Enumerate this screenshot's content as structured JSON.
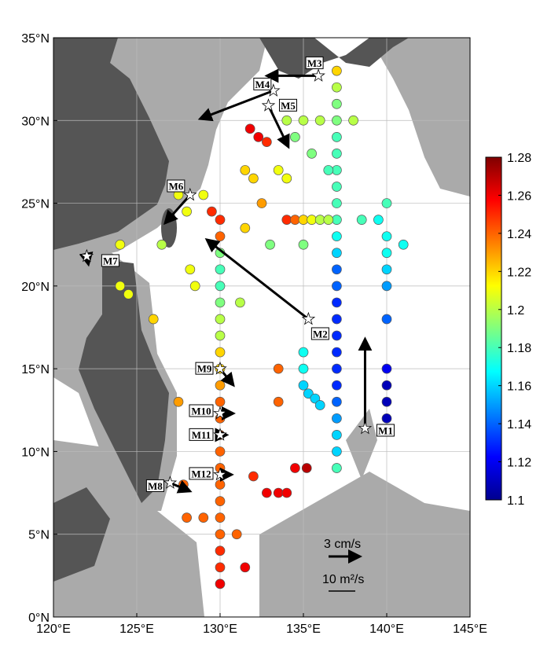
{
  "chart_data": {
    "type": "map",
    "xlim": [
      120,
      145
    ],
    "ylim": [
      0,
      35
    ],
    "xticks": [
      {
        "value": 120,
        "label": "120°E"
      },
      {
        "value": 125,
        "label": "125°E"
      },
      {
        "value": 130,
        "label": "130°E"
      },
      {
        "value": 135,
        "label": "135°E"
      },
      {
        "value": 140,
        "label": "140°E"
      },
      {
        "value": 145,
        "label": "145°E"
      }
    ],
    "yticks": [
      {
        "value": 0,
        "label": "0°N"
      },
      {
        "value": 5,
        "label": "5°N"
      },
      {
        "value": 10,
        "label": "10°N"
      },
      {
        "value": 15,
        "label": "15°N"
      },
      {
        "value": 20,
        "label": "20°N"
      },
      {
        "value": 25,
        "label": "25°N"
      },
      {
        "value": 30,
        "label": "30°N"
      },
      {
        "value": 35,
        "label": "35°N"
      }
    ],
    "grid": true,
    "clim": [
      1.1,
      1.28
    ],
    "cticks": [
      1.1,
      1.12,
      1.14,
      1.16,
      1.18,
      1.2,
      1.22,
      1.24,
      1.26,
      1.28
    ],
    "colormap": "jet",
    "scale_labels": [
      "3 cm/s",
      "10 m²/s"
    ],
    "points": [
      [
        137,
        33,
        1.22
      ],
      [
        137,
        32,
        1.2
      ],
      [
        137,
        31,
        1.19
      ],
      [
        137,
        30,
        1.19
      ],
      [
        137,
        29,
        1.18
      ],
      [
        137,
        28,
        1.18
      ],
      [
        137,
        27,
        1.18
      ],
      [
        137,
        26,
        1.18
      ],
      [
        137,
        25,
        1.18
      ],
      [
        137,
        24,
        1.18
      ],
      [
        137,
        23,
        1.17
      ],
      [
        137,
        22,
        1.16
      ],
      [
        137,
        21,
        1.14
      ],
      [
        137,
        20,
        1.14
      ],
      [
        137,
        19,
        1.13
      ],
      [
        137,
        18,
        1.13
      ],
      [
        137,
        17,
        1.13
      ],
      [
        137,
        16,
        1.13
      ],
      [
        137,
        15,
        1.13
      ],
      [
        137,
        14,
        1.13
      ],
      [
        137,
        13,
        1.14
      ],
      [
        137,
        12,
        1.15
      ],
      [
        137,
        11,
        1.16
      ],
      [
        137,
        10,
        1.16
      ],
      [
        137,
        9,
        1.18
      ],
      [
        130,
        24,
        1.25
      ],
      [
        130,
        23,
        1.24
      ],
      [
        130,
        22,
        1.19
      ],
      [
        130,
        21,
        1.18
      ],
      [
        130,
        20,
        1.18
      ],
      [
        130,
        19,
        1.19
      ],
      [
        130,
        18,
        1.2
      ],
      [
        130,
        17,
        1.2
      ],
      [
        130,
        16,
        1.22
      ],
      [
        130,
        15,
        1.22
      ],
      [
        130,
        14,
        1.23
      ],
      [
        130,
        13,
        1.24
      ],
      [
        130,
        12,
        1.24
      ],
      [
        130,
        11,
        1.24
      ],
      [
        130,
        10,
        1.24
      ],
      [
        130,
        9,
        1.24
      ],
      [
        130,
        8,
        1.24
      ],
      [
        130,
        7,
        1.24
      ],
      [
        130,
        6,
        1.24
      ],
      [
        130,
        5,
        1.24
      ],
      [
        130,
        4,
        1.25
      ],
      [
        130,
        3,
        1.25
      ],
      [
        130,
        2,
        1.26
      ],
      [
        140,
        25,
        1.18
      ],
      [
        140,
        23,
        1.17
      ],
      [
        140,
        22,
        1.17
      ],
      [
        140,
        21,
        1.16
      ],
      [
        140,
        20,
        1.15
      ],
      [
        140,
        18,
        1.14
      ],
      [
        140,
        15,
        1.12
      ],
      [
        140,
        14,
        1.11
      ],
      [
        140,
        13,
        1.11
      ],
      [
        140,
        12,
        1.11
      ],
      [
        134,
        24,
        1.25
      ],
      [
        134.5,
        24,
        1.24
      ],
      [
        135,
        24,
        1.22
      ],
      [
        135.5,
        24,
        1.21
      ],
      [
        136,
        24,
        1.2
      ],
      [
        136.5,
        24,
        1.2
      ],
      [
        134,
        30,
        1.2
      ],
      [
        135,
        30,
        1.2
      ],
      [
        136,
        30,
        1.2
      ],
      [
        138,
        30,
        1.2
      ],
      [
        134.5,
        29,
        1.19
      ],
      [
        135.5,
        28,
        1.19
      ],
      [
        136.5,
        27,
        1.18
      ],
      [
        131.8,
        29.5,
        1.26
      ],
      [
        132.3,
        29,
        1.26
      ],
      [
        132.8,
        28.7,
        1.25
      ],
      [
        131.5,
        27,
        1.22
      ],
      [
        132,
        26.5,
        1.22
      ],
      [
        133.5,
        27,
        1.21
      ],
      [
        134,
        26.5,
        1.21
      ],
      [
        132.5,
        25,
        1.23
      ],
      [
        135,
        15,
        1.17
      ],
      [
        135,
        14,
        1.16
      ],
      [
        135.3,
        13.5,
        1.16
      ],
      [
        135.7,
        13.2,
        1.16
      ],
      [
        136,
        12.8,
        1.16
      ],
      [
        135,
        16,
        1.17
      ],
      [
        134.5,
        9,
        1.26
      ],
      [
        135.2,
        9,
        1.27
      ],
      [
        133.5,
        15,
        1.24
      ],
      [
        133.5,
        13,
        1.24
      ],
      [
        132,
        8.5,
        1.25
      ],
      [
        132.8,
        7.5,
        1.26
      ],
      [
        133.5,
        7.5,
        1.26
      ],
      [
        134,
        7.5,
        1.26
      ],
      [
        131,
        5,
        1.24
      ],
      [
        131.5,
        3,
        1.26
      ],
      [
        127.5,
        13,
        1.23
      ],
      [
        128.2,
        21,
        1.21
      ],
      [
        128.5,
        20,
        1.21
      ],
      [
        126,
        18,
        1.22
      ],
      [
        124,
        22.5,
        1.21
      ],
      [
        124,
        20,
        1.21
      ],
      [
        124.5,
        19.5,
        1.21
      ],
      [
        126.5,
        22.5,
        1.2
      ],
      [
        127.5,
        25.5,
        1.21
      ],
      [
        128,
        24.5,
        1.21
      ],
      [
        129,
        25.5,
        1.21
      ],
      [
        129.5,
        24.5,
        1.25
      ],
      [
        131.5,
        23.5,
        1.22
      ],
      [
        133,
        22.5,
        1.19
      ],
      [
        135,
        22.5,
        1.19
      ],
      [
        138.5,
        24,
        1.18
      ],
      [
        139.5,
        24,
        1.17
      ],
      [
        141,
        22.5,
        1.17
      ],
      [
        128,
        6,
        1.24
      ],
      [
        129,
        6,
        1.24
      ],
      [
        127.8,
        8,
        1.24
      ],
      [
        131.2,
        19,
        1.2
      ]
    ],
    "stations": [
      {
        "name": "M1",
        "lon": 138.7,
        "lat": 11.4,
        "arrow_to": [
          138.7,
          16.8
        ]
      },
      {
        "name": "M2",
        "lon": 135.3,
        "lat": 18,
        "arrow_to": [
          129.2,
          22.8
        ]
      },
      {
        "name": "M3",
        "lon": 135.9,
        "lat": 32.7,
        "arrow_to": [
          132.8,
          32.7
        ]
      },
      {
        "name": "M4",
        "lon": 133.2,
        "lat": 31.8,
        "arrow_to": [
          128.8,
          30.1
        ]
      },
      {
        "name": "M5",
        "lon": 132.9,
        "lat": 30.9,
        "arrow_to": [
          134.1,
          28.4
        ]
      },
      {
        "name": "M6",
        "lon": 128.2,
        "lat": 25.5,
        "arrow_to": [
          126.7,
          23.8
        ]
      },
      {
        "name": "M7",
        "lon": 122,
        "lat": 21.8,
        "arrow_to": [
          122.1,
          21.3
        ]
      },
      {
        "name": "M8",
        "lon": 127,
        "lat": 8.1,
        "arrow_to": [
          128.2,
          7.6
        ]
      },
      {
        "name": "M9",
        "lon": 130,
        "lat": 15,
        "arrow_to": [
          130.8,
          14
        ]
      },
      {
        "name": "M10",
        "lon": 130,
        "lat": 12.3,
        "arrow_to": [
          130.8,
          12.3
        ]
      },
      {
        "name": "M11",
        "lon": 130,
        "lat": 11,
        "arrow_to": [
          130.4,
          11
        ]
      },
      {
        "name": "M12",
        "lon": 130,
        "lat": 8.6,
        "arrow_to": [
          130.7,
          8.6
        ]
      }
    ]
  }
}
